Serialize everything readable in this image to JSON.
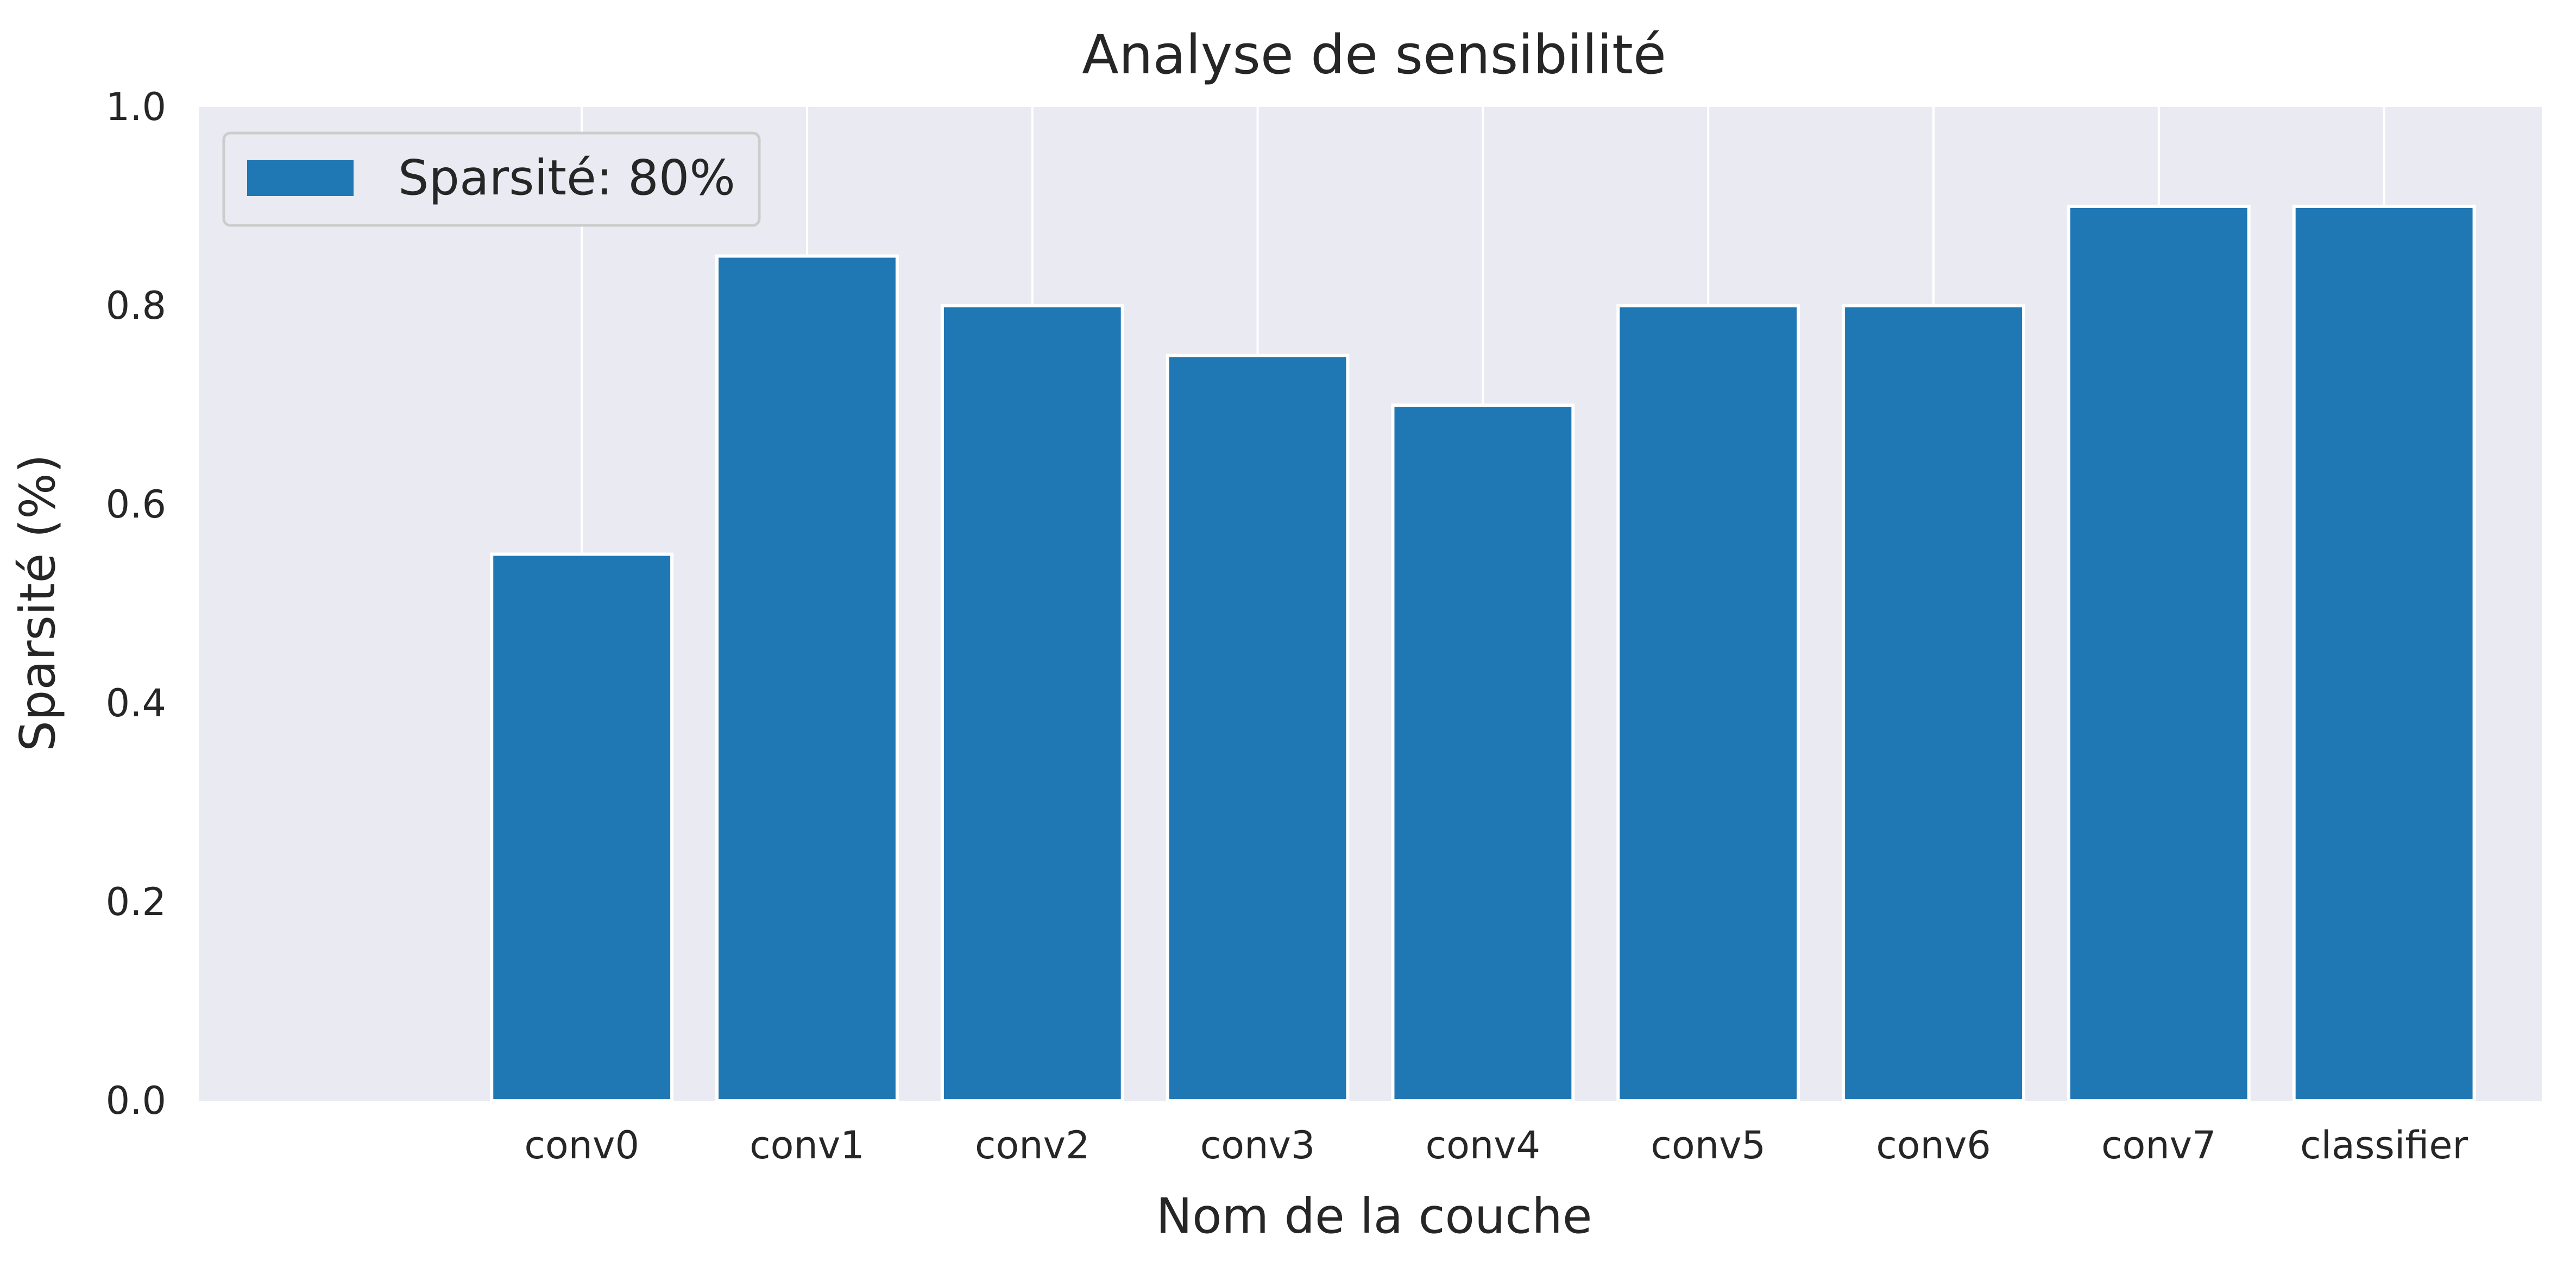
{
  "chart_data": {
    "type": "bar",
    "title": "Analyse de sensibilité",
    "xlabel": "Nom de la couche",
    "ylabel": "Sparsité (%)",
    "categories": [
      "conv0",
      "conv1",
      "conv2",
      "conv3",
      "conv4",
      "conv5",
      "conv6",
      "conv7",
      "classifier"
    ],
    "series": [
      {
        "name": "Sparsité: 80%",
        "values": [
          0.55,
          0.85,
          0.8,
          0.75,
          0.7,
          0.8,
          0.8,
          0.9,
          0.9
        ]
      }
    ],
    "ylim": [
      0,
      1.0
    ],
    "yticks": [
      "0.0",
      "0.2",
      "0.4",
      "0.6",
      "0.8",
      "1.0"
    ],
    "grid": true,
    "legend_position": "top-left",
    "colors": {
      "bar": "#1f77b4",
      "background": "#eaeaf2",
      "grid": "#ffffff"
    }
  }
}
